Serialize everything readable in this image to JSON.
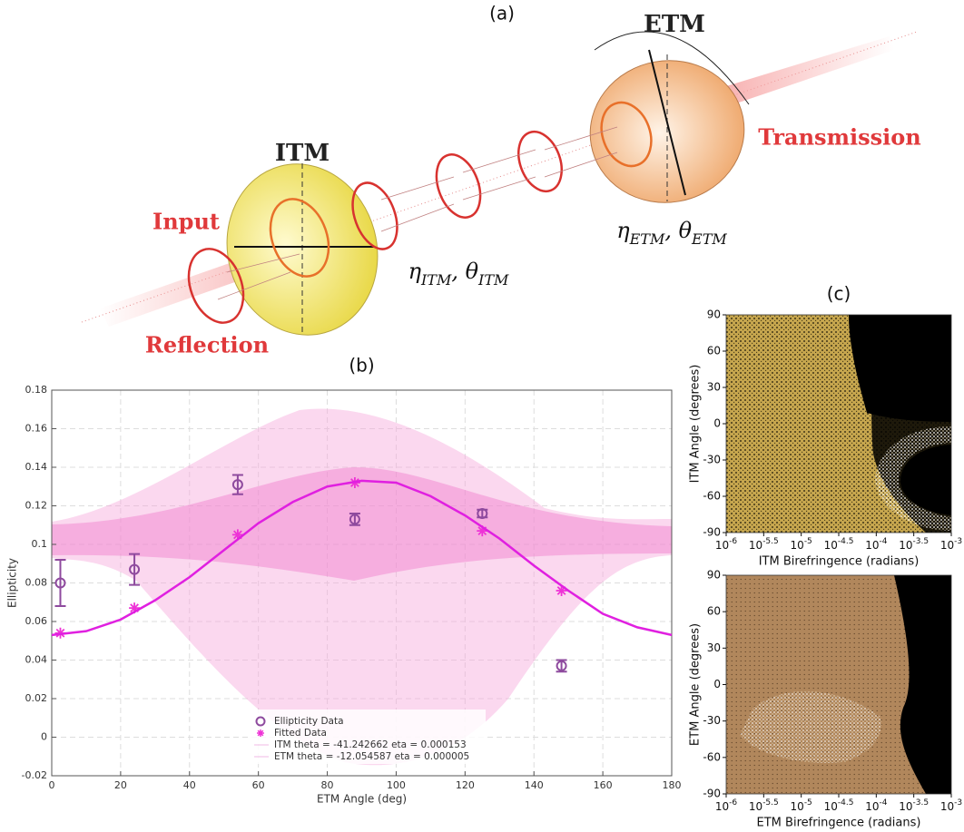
{
  "figure_a": {
    "panel_label": "(a)",
    "etm": "ETM",
    "itm": "ITM",
    "input": "Input",
    "reflection": "Reflection",
    "transmission": "Transmission",
    "itm_params": [
      "η",
      "ITM",
      ", θ",
      "ITM"
    ],
    "etm_params": [
      "η",
      "ETM",
      ", θ",
      "ETM"
    ]
  },
  "chart_data": [
    {
      "type": "line",
      "panel_label": "(b)",
      "x_label": "ETM Angle (deg)",
      "y_label": "Ellipticity",
      "xlim": [
        0,
        180
      ],
      "ylim": [
        -0.02,
        0.18
      ],
      "xticks": [
        0,
        20,
        40,
        60,
        80,
        100,
        120,
        140,
        160,
        180
      ],
      "yticks": [
        -0.02,
        0,
        0.02,
        0.04,
        0.06,
        0.08,
        0.1,
        0.12,
        0.14,
        0.16,
        0.18
      ],
      "grid": true,
      "series": [
        {
          "name": "Ellipticity Data",
          "color": "#8e4a9e",
          "marker": "circle",
          "x": [
            2.5,
            24,
            54,
            88,
            125,
            148
          ],
          "values": [
            0.08,
            0.087,
            0.131,
            0.113,
            0.116,
            0.037
          ],
          "errors": [
            0.012,
            0.008,
            0.005,
            0.003,
            0.002,
            0.003
          ]
        },
        {
          "name": "Fitted Data",
          "color": "#ee33d6",
          "marker": "star",
          "x": [
            2.5,
            24,
            54,
            88,
            125,
            148
          ],
          "values": [
            0.054,
            0.067,
            0.105,
            0.132,
            0.107,
            0.076
          ]
        },
        {
          "color": "#e020e0",
          "marker": "line",
          "x": [
            0,
            10,
            20,
            30,
            40,
            50,
            60,
            70,
            80,
            90,
            100,
            110,
            120,
            130,
            140,
            150,
            160,
            170,
            180
          ],
          "values": [
            0.053,
            0.055,
            0.061,
            0.071,
            0.083,
            0.097,
            0.111,
            0.122,
            0.13,
            0.133,
            0.132,
            0.125,
            0.115,
            0.103,
            0.089,
            0.076,
            0.064,
            0.057,
            0.053
          ]
        }
      ],
      "annotations": [
        "ITM theta = -41.242662 eta = 0.000153",
        "ETM theta = -12.054587 eta = 0.000005"
      ]
    },
    {
      "type": "density",
      "panel_label": "(c)",
      "x_label": "ITM Birefringence (radians)",
      "y_label": "ITM Angle (degrees)",
      "xlog": true,
      "xlim": [
        1e-06,
        0.001
      ],
      "ylim": [
        -90,
        90
      ],
      "xticks": [
        {
          "value": 1e-06,
          "base": "10",
          "exponent": "-6"
        },
        {
          "value": 3.1623e-06,
          "base": "10",
          "exponent": "-5.5"
        },
        {
          "value": 1e-05,
          "base": "10",
          "exponent": "-5"
        },
        {
          "value": 3.1623e-05,
          "base": "10",
          "exponent": "-4.5"
        },
        {
          "value": 0.0001,
          "base": "10",
          "exponent": "-4"
        },
        {
          "value": 0.00031623,
          "base": "10",
          "exponent": "-3.5"
        },
        {
          "value": 0.001,
          "base": "10",
          "exponent": "-3"
        }
      ],
      "yticks": [
        -90,
        -60,
        -30,
        0,
        30,
        60,
        90
      ],
      "color": "#d8b85a"
    },
    {
      "type": "density",
      "x_label": "ETM Birefringence (radians)",
      "y_label": "ETM Angle (degrees)",
      "xlog": true,
      "xlim": [
        1e-06,
        0.001
      ],
      "ylim": [
        -90,
        90
      ],
      "xticks": [
        {
          "value": 1e-06,
          "base": "10",
          "exponent": "-6"
        },
        {
          "value": 3.1623e-06,
          "base": "10",
          "exponent": "-5.5"
        },
        {
          "value": 1e-05,
          "base": "10",
          "exponent": "-5"
        },
        {
          "value": 3.1623e-05,
          "base": "10",
          "exponent": "-4.5"
        },
        {
          "value": 0.0001,
          "base": "10",
          "exponent": "-4"
        },
        {
          "value": 0.00031623,
          "base": "10",
          "exponent": "-3.5"
        },
        {
          "value": 0.001,
          "base": "10",
          "exponent": "-3"
        }
      ],
      "yticks": [
        -90,
        -60,
        -30,
        0,
        30,
        60,
        90
      ],
      "color": "#b38a5f"
    }
  ]
}
